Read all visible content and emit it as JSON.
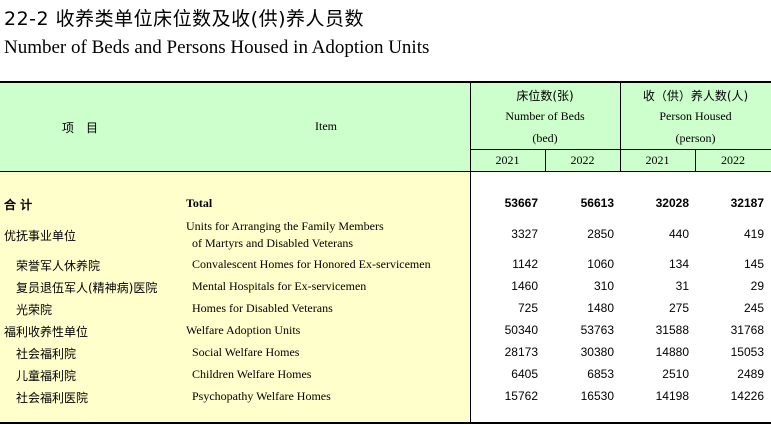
{
  "title_cn": "22-2 收养类单位床位数及收(供)养人员数",
  "title_en": "Number of Beds and Persons Housed in Adoption Units",
  "header": {
    "item_cn": "项　目",
    "item_en": "Item",
    "beds_cn": "床位数(张)",
    "beds_en": "Number of Beds",
    "beds_unit": "(bed)",
    "persons_cn": "收（供）养人数(人)",
    "persons_en": "Person Housed",
    "persons_unit": "(person)",
    "year1": "2021",
    "year2": "2022",
    "year3": "2021",
    "year4": "2022"
  },
  "rows": [
    {
      "cn": "合  计",
      "en": "Total",
      "beds_2021": "53667",
      "beds_2022": "56613",
      "persons_2021": "32028",
      "persons_2022": "32187",
      "bold": true
    },
    {
      "cn": "优抚事业单位",
      "en": "Units for Arranging the Family Members",
      "en2": "of Martyrs and Disabled Veterans",
      "beds_2021": "3327",
      "beds_2022": "2850",
      "persons_2021": "440",
      "persons_2022": "419"
    },
    {
      "cn": "荣誉军人休养院",
      "en": "Convalescent Homes for Honored Ex-servicemen",
      "beds_2021": "1142",
      "beds_2022": "1060",
      "persons_2021": "134",
      "persons_2022": "145"
    },
    {
      "cn": "复员退伍军人(精神病)医院",
      "en": "Mental Hospitals for Ex-servicemen",
      "beds_2021": "1460",
      "beds_2022": "310",
      "persons_2021": "31",
      "persons_2022": "29"
    },
    {
      "cn": "光荣院",
      "en": "Homes for Disabled Veterans",
      "beds_2021": "725",
      "beds_2022": "1480",
      "persons_2021": "275",
      "persons_2022": "245"
    },
    {
      "cn": "福利收养性单位",
      "en": "Welfare Adoption Units",
      "beds_2021": "50340",
      "beds_2022": "53763",
      "persons_2021": "31588",
      "persons_2022": "31768"
    },
    {
      "cn": "社会福利院",
      "en": "Social Welfare Homes",
      "beds_2021": "28173",
      "beds_2022": "30380",
      "persons_2021": "14880",
      "persons_2022": "15053"
    },
    {
      "cn": "儿童福利院",
      "en": "Children Welfare Homes",
      "beds_2021": "6405",
      "beds_2022": "6853",
      "persons_2021": "2510",
      "persons_2022": "2489"
    },
    {
      "cn": "社会福利医院",
      "en": "Psychopathy Welfare Homes",
      "beds_2021": "15762",
      "beds_2022": "16530",
      "persons_2021": "14198",
      "persons_2022": "14226"
    }
  ]
}
